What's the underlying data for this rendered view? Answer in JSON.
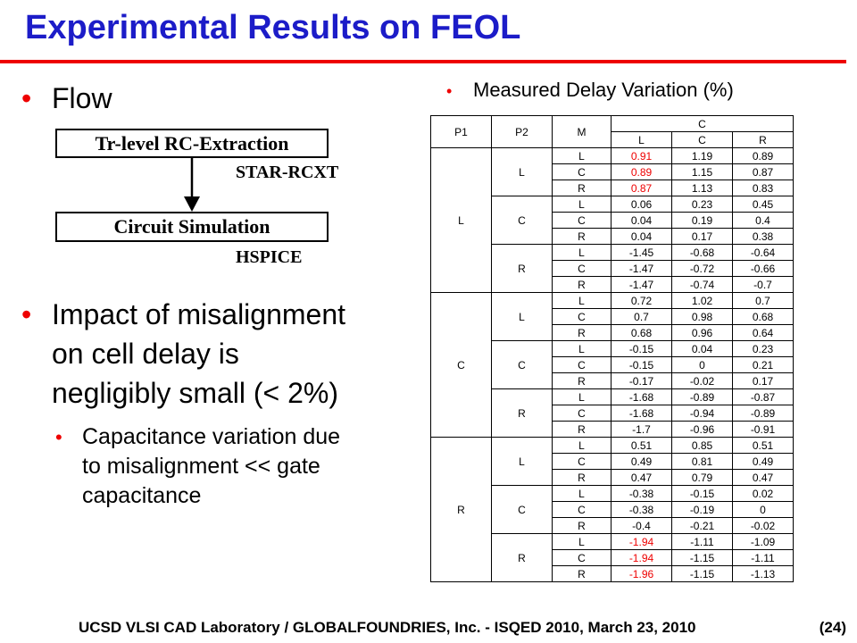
{
  "slide": {
    "title": "Experimental Results on FEOL",
    "accent_color": "#1c1cc8",
    "rule_color": "#ee0000",
    "bullet_char": "•"
  },
  "left": {
    "flow_bullet": "Flow",
    "flow_box1": "Tr-level RC-Extraction",
    "flow_label1": "STAR-RCXT",
    "flow_box2": "Circuit Simulation",
    "flow_label2": "HSPICE",
    "impact_lines": [
      "Impact of misalignment",
      "on cell delay is",
      "negligibly small (< 2%)"
    ],
    "sub_lines": [
      "Capacitance variation due",
      "to misalignment << gate",
      "capacitance"
    ]
  },
  "right": {
    "heading": "Measured Delay Variation (%)"
  },
  "table": {
    "headers": {
      "p1": "P1",
      "p2": "P2",
      "m": "M",
      "c": "C",
      "sub": [
        "L",
        "C",
        "R"
      ]
    },
    "groups": [
      {
        "p1": "L",
        "subs": [
          {
            "p2": "L",
            "rows": [
              {
                "m": "L",
                "v": [
                  "0.91",
                  "1.19",
                  "0.89"
                ],
                "red": [
                  true,
                  false,
                  false
                ]
              },
              {
                "m": "C",
                "v": [
                  "0.89",
                  "1.15",
                  "0.87"
                ],
                "red": [
                  true,
                  false,
                  false
                ]
              },
              {
                "m": "R",
                "v": [
                  "0.87",
                  "1.13",
                  "0.83"
                ],
                "red": [
                  true,
                  false,
                  false
                ]
              }
            ]
          },
          {
            "p2": "C",
            "rows": [
              {
                "m": "L",
                "v": [
                  "0.06",
                  "0.23",
                  "0.45"
                ]
              },
              {
                "m": "C",
                "v": [
                  "0.04",
                  "0.19",
                  "0.4"
                ]
              },
              {
                "m": "R",
                "v": [
                  "0.04",
                  "0.17",
                  "0.38"
                ]
              }
            ]
          },
          {
            "p2": "R",
            "rows": [
              {
                "m": "L",
                "v": [
                  "-1.45",
                  "-0.68",
                  "-0.64"
                ]
              },
              {
                "m": "C",
                "v": [
                  "-1.47",
                  "-0.72",
                  "-0.66"
                ]
              },
              {
                "m": "R",
                "v": [
                  "-1.47",
                  "-0.74",
                  "-0.7"
                ]
              }
            ]
          }
        ]
      },
      {
        "p1": "C",
        "subs": [
          {
            "p2": "L",
            "rows": [
              {
                "m": "L",
                "v": [
                  "0.72",
                  "1.02",
                  "0.7"
                ]
              },
              {
                "m": "C",
                "v": [
                  "0.7",
                  "0.98",
                  "0.68"
                ]
              },
              {
                "m": "R",
                "v": [
                  "0.68",
                  "0.96",
                  "0.64"
                ]
              }
            ]
          },
          {
            "p2": "C",
            "rows": [
              {
                "m": "L",
                "v": [
                  "-0.15",
                  "0.04",
                  "0.23"
                ]
              },
              {
                "m": "C",
                "v": [
                  "-0.15",
                  "0",
                  "0.21"
                ]
              },
              {
                "m": "R",
                "v": [
                  "-0.17",
                  "-0.02",
                  "0.17"
                ]
              }
            ]
          },
          {
            "p2": "R",
            "rows": [
              {
                "m": "L",
                "v": [
                  "-1.68",
                  "-0.89",
                  "-0.87"
                ]
              },
              {
                "m": "C",
                "v": [
                  "-1.68",
                  "-0.94",
                  "-0.89"
                ]
              },
              {
                "m": "R",
                "v": [
                  "-1.7",
                  "-0.96",
                  "-0.91"
                ]
              }
            ]
          }
        ]
      },
      {
        "p1": "R",
        "subs": [
          {
            "p2": "L",
            "rows": [
              {
                "m": "L",
                "v": [
                  "0.51",
                  "0.85",
                  "0.51"
                ]
              },
              {
                "m": "C",
                "v": [
                  "0.49",
                  "0.81",
                  "0.49"
                ]
              },
              {
                "m": "R",
                "v": [
                  "0.47",
                  "0.79",
                  "0.47"
                ]
              }
            ]
          },
          {
            "p2": "C",
            "rows": [
              {
                "m": "L",
                "v": [
                  "-0.38",
                  "-0.15",
                  "0.02"
                ]
              },
              {
                "m": "C",
                "v": [
                  "-0.38",
                  "-0.19",
                  "0"
                ]
              },
              {
                "m": "R",
                "v": [
                  "-0.4",
                  "-0.21",
                  "-0.02"
                ]
              }
            ]
          },
          {
            "p2": "R",
            "rows": [
              {
                "m": "L",
                "v": [
                  "-1.94",
                  "-1.11",
                  "-1.09"
                ],
                "red": [
                  true,
                  false,
                  false
                ]
              },
              {
                "m": "C",
                "v": [
                  "-1.94",
                  "-1.15",
                  "-1.11"
                ],
                "red": [
                  true,
                  false,
                  false
                ]
              },
              {
                "m": "R",
                "v": [
                  "-1.96",
                  "-1.15",
                  "-1.13"
                ],
                "red": [
                  true,
                  false,
                  false
                ]
              }
            ]
          }
        ]
      }
    ]
  },
  "footer": {
    "text": "UCSD VLSI CAD Laboratory /   GLOBALFOUNDRIES, Inc.   - ISQED 2010,   March 23, 2010",
    "page": "(24)"
  }
}
